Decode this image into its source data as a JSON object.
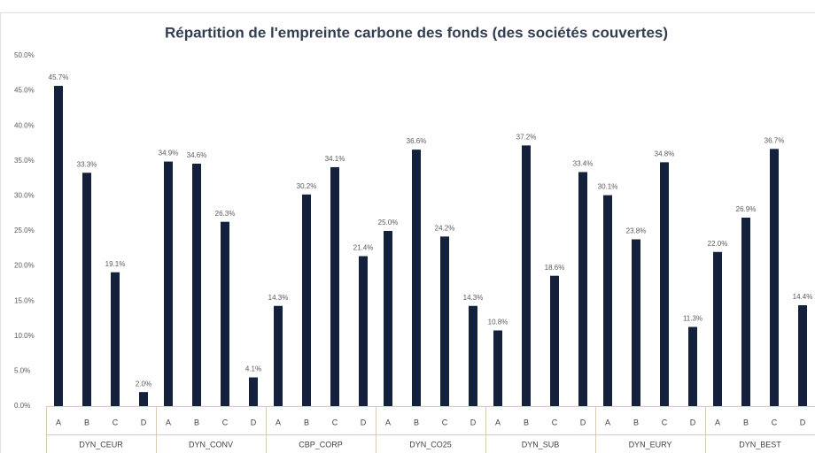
{
  "chart_data": {
    "type": "bar",
    "title": "Répartition de l'empreinte carbone des fonds (des sociétés couvertes)",
    "color": "#14213d",
    "ylim": [
      0,
      50
    ],
    "yticks": [
      {
        "value": 0,
        "label": "0.0%"
      },
      {
        "value": 5,
        "label": "5.0%"
      },
      {
        "value": 10,
        "label": "10.0%"
      },
      {
        "value": 15,
        "label": "15.0%"
      },
      {
        "value": 20,
        "label": "20.0%"
      },
      {
        "value": 25,
        "label": "25.0%"
      },
      {
        "value": 30,
        "label": "30.0%"
      },
      {
        "value": 35,
        "label": "35.0%"
      },
      {
        "value": 40,
        "label": "40.0%"
      },
      {
        "value": 45,
        "label": "45.0%"
      },
      {
        "value": 50,
        "label": "50.0%"
      }
    ],
    "groups": [
      {
        "name": "DYN_CEUR",
        "categories": [
          "A",
          "B",
          "C",
          "D"
        ],
        "values": [
          45.7,
          33.3,
          19.1,
          2.0
        ],
        "value_labels": [
          "45.7%",
          "33.3%",
          "19.1%",
          "2.0%"
        ]
      },
      {
        "name": "DYN_CONV",
        "categories": [
          "A",
          "B",
          "C",
          "D"
        ],
        "values": [
          34.9,
          34.6,
          26.3,
          4.1
        ],
        "value_labels": [
          "34.9%",
          "34.6%",
          "26.3%",
          "4.1%"
        ]
      },
      {
        "name": "CBP_CORP",
        "categories": [
          "A",
          "B",
          "C",
          "D"
        ],
        "values": [
          14.3,
          30.2,
          34.1,
          21.4
        ],
        "value_labels": [
          "14.3%",
          "30.2%",
          "34.1%",
          "21.4%"
        ]
      },
      {
        "name": "DYN_CO25",
        "categories": [
          "A",
          "B",
          "C",
          "D"
        ],
        "values": [
          25.0,
          36.6,
          24.2,
          14.3
        ],
        "value_labels": [
          "25.0%",
          "36.6%",
          "24.2%",
          "14.3%"
        ]
      },
      {
        "name": "DYN_SUB",
        "categories": [
          "A",
          "B",
          "C",
          "D"
        ],
        "values": [
          10.8,
          37.2,
          18.6,
          33.4
        ],
        "value_labels": [
          "10.8%",
          "37.2%",
          "18.6%",
          "33.4%"
        ]
      },
      {
        "name": "DYN_EURY",
        "categories": [
          "A",
          "B",
          "C",
          "D"
        ],
        "values": [
          30.1,
          23.8,
          34.8,
          11.3
        ],
        "value_labels": [
          "30.1%",
          "23.8%",
          "34.8%",
          "11.3%"
        ]
      },
      {
        "name": "DYN_BEST",
        "categories": [
          "A",
          "B",
          "C",
          "D"
        ],
        "values": [
          22.0,
          26.9,
          36.7,
          14.4
        ],
        "value_labels": [
          "22.0%",
          "26.9%",
          "36.7%",
          "14.4%"
        ]
      }
    ]
  }
}
